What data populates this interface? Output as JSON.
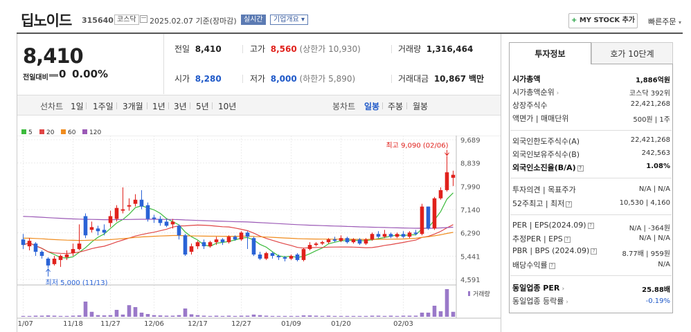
{
  "header": {
    "title": "딥노이드",
    "code": "315640",
    "market_badge": "코스닥",
    "date": "2025.02.07 기준(장마감)",
    "realtime_label": "실시간",
    "corp_label": "기업개요 ▾",
    "mystock_label": "MY STOCK 추가",
    "mystock_plus": "+",
    "quick_label": "빠른주문",
    "quick_arrow": "▾"
  },
  "summary": {
    "price": "8,410",
    "change_label": "전일대비",
    "change_value": "0",
    "change_percent": "0.00%",
    "prev_label": "전일",
    "prev_value": "8,410",
    "high_label": "고가",
    "high_value": "8,560",
    "upper_limit": "(상한가 10,930)",
    "volume_label": "거래량",
    "volume_value": "1,316,464",
    "open_label": "시가",
    "open_value": "8,280",
    "low_label": "저가",
    "low_value": "8,000",
    "lower_limit": "(하한가 5,890)",
    "amount_label": "거래대금",
    "amount_value": "10,867",
    "amount_unit": "백만"
  },
  "toolbar": {
    "line_chart": "선차트",
    "periods": [
      "1일",
      "1주일",
      "3개월",
      "1년",
      "3년",
      "5년",
      "10년"
    ],
    "candle_chart": "봉차트",
    "candle_periods": [
      "일봉",
      "주봉",
      "월봉"
    ],
    "selected_candle": "일봉"
  },
  "chart_data": {
    "type": "candlestick",
    "legend": [
      {
        "name": "5",
        "color": "#3dbb3d"
      },
      {
        "name": "20",
        "color": "#e04545"
      },
      {
        "name": "60",
        "color": "#f08c1e"
      },
      {
        "name": "120",
        "color": "#9b59b6"
      }
    ],
    "y_ticks": [
      "9,689",
      "8,839",
      "7,990",
      "7,140",
      "6,290",
      "5,441",
      "4,591"
    ],
    "ylim": [
      4591,
      9689
    ],
    "x_ticks": [
      "11/07",
      "11/18",
      "11/27",
      "12/06",
      "12/17",
      "12/27",
      "01/09",
      "01/20",
      "02/03"
    ],
    "high_annotation": "최고 9,090 (02/06)",
    "low_annotation": "최저 5,000 (11/13)",
    "volume_label": "거래량",
    "candles": [
      {
        "o": 6050,
        "c": 5850,
        "h": 6250,
        "l": 5700
      },
      {
        "o": 5800,
        "c": 6000,
        "h": 6100,
        "l": 5650
      },
      {
        "o": 5900,
        "c": 5600,
        "h": 5950,
        "l": 5450
      },
      {
        "o": 5600,
        "c": 5450,
        "h": 5650,
        "l": 5350
      },
      {
        "o": 5350,
        "c": 5100,
        "h": 5400,
        "l": 5000
      },
      {
        "o": 5150,
        "c": 5350,
        "h": 5450,
        "l": 5100
      },
      {
        "o": 5300,
        "c": 5450,
        "h": 5500,
        "l": 5050
      },
      {
        "o": 5400,
        "c": 5500,
        "h": 5650,
        "l": 5300
      },
      {
        "o": 5550,
        "c": 5700,
        "h": 5900,
        "l": 5450
      },
      {
        "o": 5700,
        "c": 5900,
        "h": 6600,
        "l": 5650
      },
      {
        "o": 6900,
        "c": 6200,
        "h": 7000,
        "l": 6100
      },
      {
        "o": 6400,
        "c": 6500,
        "h": 6700,
        "l": 6300
      },
      {
        "o": 6450,
        "c": 6350,
        "h": 6550,
        "l": 6200
      },
      {
        "o": 6400,
        "c": 6300,
        "h": 6600,
        "l": 6200
      },
      {
        "o": 6650,
        "c": 6900,
        "h": 7100,
        "l": 6500
      },
      {
        "o": 6800,
        "c": 7200,
        "h": 7300,
        "l": 6700
      },
      {
        "o": 7100,
        "c": 7150,
        "h": 7950,
        "l": 7000
      },
      {
        "o": 7250,
        "c": 7300,
        "h": 7550,
        "l": 7100
      },
      {
        "o": 7350,
        "c": 7500,
        "h": 7700,
        "l": 7250
      },
      {
        "o": 7500,
        "c": 7250,
        "h": 7850,
        "l": 7150
      },
      {
        "o": 7300,
        "c": 6800,
        "h": 7400,
        "l": 6700
      },
      {
        "o": 6850,
        "c": 6800,
        "h": 6950,
        "l": 6650
      },
      {
        "o": 6800,
        "c": 6650,
        "h": 6900,
        "l": 6550
      },
      {
        "o": 6700,
        "c": 6550,
        "h": 6800,
        "l": 6500
      },
      {
        "o": 6600,
        "c": 6700,
        "h": 6800,
        "l": 6450
      },
      {
        "o": 6550,
        "c": 6200,
        "h": 6600,
        "l": 6050
      },
      {
        "o": 6200,
        "c": 5500,
        "h": 6250,
        "l": 5450
      },
      {
        "o": 5600,
        "c": 5800,
        "h": 5900,
        "l": 5500
      },
      {
        "o": 5800,
        "c": 5950,
        "h": 6000,
        "l": 5700
      },
      {
        "o": 5950,
        "c": 5800,
        "h": 6050,
        "l": 5700
      },
      {
        "o": 5800,
        "c": 5950,
        "h": 6000,
        "l": 5750
      },
      {
        "o": 5950,
        "c": 6050,
        "h": 6150,
        "l": 5850
      },
      {
        "o": 6050,
        "c": 5950,
        "h": 6100,
        "l": 5850
      },
      {
        "o": 5950,
        "c": 6150,
        "h": 6200,
        "l": 5900
      },
      {
        "o": 6150,
        "c": 6050,
        "h": 6200,
        "l": 6000
      },
      {
        "o": 6050,
        "c": 6300,
        "h": 6350,
        "l": 6000
      },
      {
        "o": 6300,
        "c": 6150,
        "h": 6350,
        "l": 5700
      },
      {
        "o": 6100,
        "c": 5500,
        "h": 6150,
        "l": 5450
      },
      {
        "o": 5500,
        "c": 5350,
        "h": 5600,
        "l": 5300
      },
      {
        "o": 5350,
        "c": 5550,
        "h": 5600,
        "l": 5300
      },
      {
        "o": 5550,
        "c": 5450,
        "h": 5600,
        "l": 5350
      },
      {
        "o": 5450,
        "c": 5400,
        "h": 5500,
        "l": 5300
      },
      {
        "o": 5400,
        "c": 5350,
        "h": 5450,
        "l": 5250
      },
      {
        "o": 5350,
        "c": 5450,
        "h": 5500,
        "l": 5300
      },
      {
        "o": 5500,
        "c": 5300,
        "h": 5550,
        "l": 5250
      },
      {
        "o": 5300,
        "c": 5700,
        "h": 5750,
        "l": 5250
      },
      {
        "o": 5700,
        "c": 5850,
        "h": 5950,
        "l": 5650
      },
      {
        "o": 5850,
        "c": 5900,
        "h": 5950,
        "l": 5800
      },
      {
        "o": 5900,
        "c": 5950,
        "h": 6000,
        "l": 5850
      },
      {
        "o": 5950,
        "c": 6050,
        "h": 6100,
        "l": 5900
      },
      {
        "o": 6050,
        "c": 6000,
        "h": 6150,
        "l": 5950
      },
      {
        "o": 6000,
        "c": 6100,
        "h": 6200,
        "l": 5950
      },
      {
        "o": 6100,
        "c": 5950,
        "h": 6150,
        "l": 5900
      },
      {
        "o": 5950,
        "c": 6050,
        "h": 6100,
        "l": 5900
      },
      {
        "o": 6050,
        "c": 5900,
        "h": 6100,
        "l": 5850
      },
      {
        "o": 5900,
        "c": 6050,
        "h": 6100,
        "l": 5850
      },
      {
        "o": 6050,
        "c": 6250,
        "h": 6300,
        "l": 6000
      },
      {
        "o": 6250,
        "c": 6150,
        "h": 6350,
        "l": 6100
      },
      {
        "o": 6150,
        "c": 6250,
        "h": 6400,
        "l": 6100
      },
      {
        "o": 6250,
        "c": 6150,
        "h": 6300,
        "l": 6100
      },
      {
        "o": 6150,
        "c": 6250,
        "h": 6300,
        "l": 6100
      },
      {
        "o": 6250,
        "c": 6150,
        "h": 6350,
        "l": 6100
      },
      {
        "o": 6150,
        "c": 6300,
        "h": 6350,
        "l": 6100
      },
      {
        "o": 6300,
        "c": 6250,
        "h": 6400,
        "l": 6200
      },
      {
        "o": 6250,
        "c": 7250,
        "h": 7350,
        "l": 6200
      },
      {
        "o": 7250,
        "c": 6450,
        "h": 7250,
        "l": 6400
      },
      {
        "o": 6450,
        "c": 7550,
        "h": 7600,
        "l": 6400
      },
      {
        "o": 7550,
        "c": 7850,
        "h": 7950,
        "l": 7500
      },
      {
        "o": 7850,
        "c": 8500,
        "h": 9090,
        "l": 7800
      },
      {
        "o": 8300,
        "c": 8410,
        "h": 8560,
        "l": 8000
      }
    ],
    "volumes": [
      0.03,
      0.03,
      0.04,
      0.04,
      0.05,
      0.04,
      0.03,
      0.03,
      0.04,
      0.05,
      0.55,
      0.18,
      0.06,
      0.05,
      0.06,
      0.25,
      0.08,
      0.42,
      0.35,
      0.15,
      0.1,
      0.06,
      0.05,
      0.04,
      0.04,
      0.06,
      0.3,
      0.09,
      0.06,
      0.04,
      0.03,
      0.04,
      0.03,
      0.04,
      0.03,
      0.04,
      0.04,
      0.08,
      0.06,
      0.04,
      0.03,
      0.03,
      0.03,
      0.03,
      0.03,
      0.05,
      0.05,
      0.04,
      0.03,
      0.04,
      0.03,
      0.03,
      0.03,
      0.03,
      0.03,
      0.03,
      0.04,
      0.04,
      0.03,
      0.04,
      0.03,
      0.04,
      0.04,
      0.04,
      0.15,
      0.15,
      0.4,
      0.2,
      1.0,
      0.18
    ]
  },
  "panel": {
    "tab_invest": "투자정보",
    "tab_order": "호가 10단계",
    "rows": [
      {
        "label": "시가총액",
        "value": "1,886억원",
        "bold": true
      },
      {
        "label": "시가총액순위",
        "value": "코스닥 392위"
      },
      {
        "label": "상장주식수",
        "value": "22,421,268"
      },
      {
        "label": "액면가 | 매매단위",
        "value": "500원 | 1주"
      },
      {
        "label": "외국인한도주식수(A)",
        "value": "22,421,268"
      },
      {
        "label": "외국인보유주식수(B)",
        "value": "242,563"
      },
      {
        "label": "외국인소진율(B/A)",
        "value": "1.08%",
        "bold": true
      },
      {
        "label": "투자의견 | 목표주가",
        "value": "N/A | N/A"
      },
      {
        "label": "52주최고 | 최저",
        "value": "10,530 | 4,160"
      },
      {
        "label": "PER | EPS(2024.09)",
        "value": "N/A | -364원"
      },
      {
        "label": "추정PER | EPS",
        "value": "N/A | N/A"
      },
      {
        "label": "PBR | BPS (2024.09)",
        "value": "8.77배 | 959원"
      },
      {
        "label": "배당수익률",
        "value": "N/A"
      },
      {
        "label": "동일업종 PER",
        "value": "25.88배",
        "bold": true
      },
      {
        "label": "동일업종 등락률",
        "value": "-0.19%",
        "blue": true
      }
    ]
  }
}
